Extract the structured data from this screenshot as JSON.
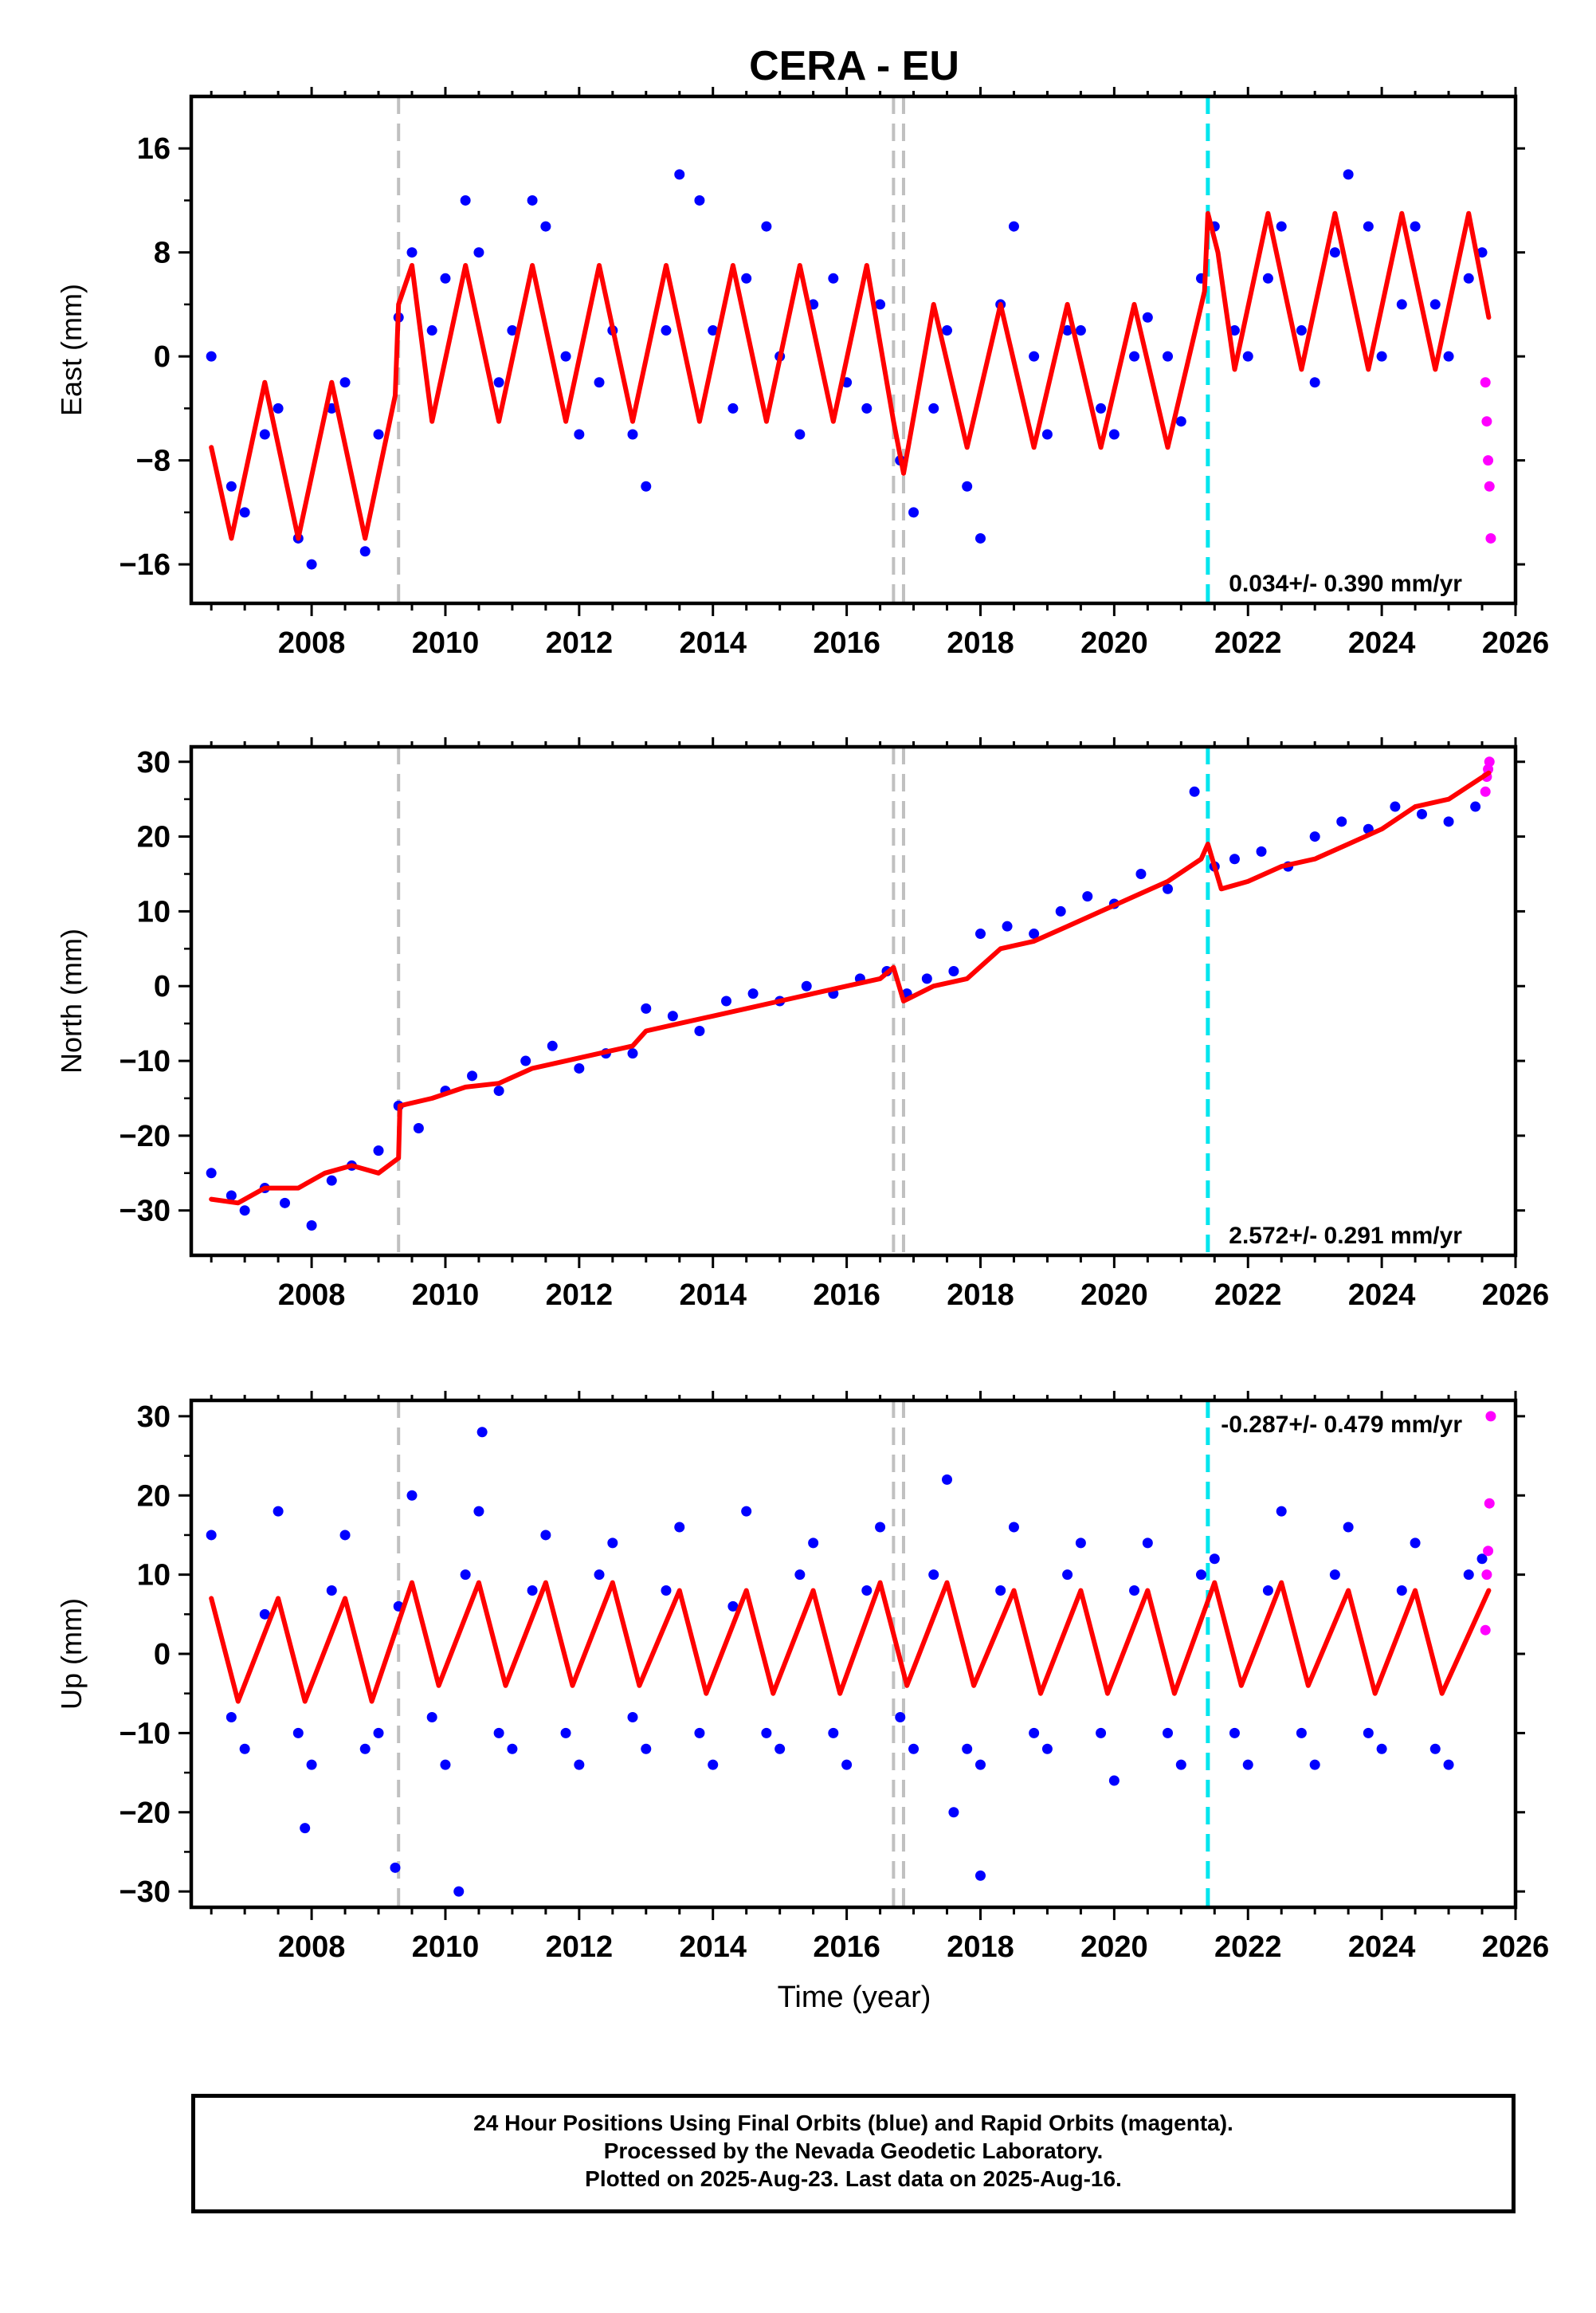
{
  "title": "CERA - EU",
  "x_axis_label": "Time (year)",
  "caption": [
    "24 Hour Positions Using Final Orbits (blue) and Rapid Orbits (magenta).",
    "Processed by the Nevada Geodetic Laboratory.",
    "Plotted on 2025-Aug-23. Last data on 2025-Aug-16."
  ],
  "colors": {
    "final_orbits": "#0000ff",
    "rapid_orbits": "#ff00ff",
    "model_fit": "#ff0000",
    "equipment_change": "#c0c0c0",
    "earthquake": "#00e5ee"
  },
  "chart_data": [
    {
      "type": "scatter",
      "ylabel": "East (mm)",
      "ylim": [
        -19,
        20
      ],
      "yticks": [
        16,
        8,
        0,
        -8,
        -16
      ],
      "xlim": [
        2006.2,
        2026
      ],
      "xticks": [
        2008,
        2010,
        2012,
        2014,
        2016,
        2018,
        2020,
        2022,
        2024,
        2026
      ],
      "rate_label": "0.034+/- 0.390 mm/yr",
      "rate_position": "bottom-right",
      "offset_lines": [
        2009.3,
        2016.7,
        2016.85
      ],
      "earthquake_lines": [
        2021.4
      ],
      "series": [
        {
          "name": "Final Orbits",
          "kind": "points",
          "color": "#0000ff",
          "x": [
            2006.5,
            2006.8,
            2007.0,
            2007.3,
            2007.5,
            2007.8,
            2008.0,
            2008.3,
            2008.5,
            2008.8,
            2009.0,
            2009.3,
            2009.5,
            2009.8,
            2010.0,
            2010.3,
            2010.5,
            2010.8,
            2011.0,
            2011.3,
            2011.5,
            2011.8,
            2012.0,
            2012.3,
            2012.5,
            2012.8,
            2013.0,
            2013.3,
            2013.5,
            2013.8,
            2014.0,
            2014.3,
            2014.5,
            2014.8,
            2015.0,
            2015.3,
            2015.5,
            2015.8,
            2016.0,
            2016.3,
            2016.5,
            2016.8,
            2017.0,
            2017.3,
            2017.5,
            2017.8,
            2018.0,
            2018.3,
            2018.5,
            2018.8,
            2019.0,
            2019.3,
            2019.5,
            2019.8,
            2020.0,
            2020.3,
            2020.5,
            2020.8,
            2021.0,
            2021.3,
            2021.5,
            2021.8,
            2022.0,
            2022.3,
            2022.5,
            2022.8,
            2023.0,
            2023.3,
            2023.5,
            2023.8,
            2024.0,
            2024.3,
            2024.5,
            2024.8,
            2025.0,
            2025.3,
            2025.5
          ],
          "y": [
            0,
            -10,
            -12,
            -6,
            -4,
            -14,
            -16,
            -4,
            -2,
            -15,
            -6,
            3,
            8,
            2,
            6,
            12,
            8,
            -2,
            2,
            12,
            10,
            0,
            -6,
            -2,
            2,
            -6,
            -10,
            2,
            14,
            12,
            2,
            -4,
            6,
            10,
            0,
            -6,
            4,
            6,
            -2,
            -4,
            4,
            -8,
            -12,
            -4,
            2,
            -10,
            -14,
            4,
            10,
            0,
            -6,
            2,
            2,
            -4,
            -6,
            0,
            3,
            0,
            -5,
            6,
            10,
            2,
            0,
            6,
            10,
            2,
            -2,
            8,
            14,
            10,
            0,
            4,
            10,
            4,
            0,
            6,
            8
          ]
        },
        {
          "name": "Rapid Orbits",
          "kind": "points",
          "color": "#ff00ff",
          "x": [
            2025.55,
            2025.57,
            2025.59,
            2025.61,
            2025.63
          ],
          "y": [
            -2,
            -5,
            -8,
            -10,
            -14
          ]
        },
        {
          "name": "Model",
          "kind": "line",
          "color": "#ff0000",
          "x": [
            2006.5,
            2006.8,
            2007.3,
            2007.8,
            2008.3,
            2008.8,
            2009.25,
            2009.3,
            2009.5,
            2009.8,
            2010.3,
            2010.8,
            2011.3,
            2011.8,
            2012.3,
            2012.8,
            2013.3,
            2013.8,
            2014.3,
            2014.8,
            2015.3,
            2015.8,
            2016.3,
            2016.7,
            2016.85,
            2017.3,
            2017.8,
            2018.3,
            2018.8,
            2019.3,
            2019.8,
            2020.3,
            2020.8,
            2021.35,
            2021.4,
            2021.55,
            2021.8,
            2022.3,
            2022.8,
            2023.3,
            2023.8,
            2024.3,
            2024.8,
            2025.3,
            2025.6
          ],
          "y": [
            -7,
            -14,
            -2,
            -14,
            -2,
            -14,
            -3,
            4,
            7,
            -5,
            7,
            -5,
            7,
            -5,
            7,
            -5,
            7,
            -5,
            7,
            -5,
            7,
            -5,
            7,
            -5,
            -9,
            4,
            -7,
            4,
            -7,
            4,
            -7,
            4,
            -7,
            5,
            11,
            8,
            -1,
            11,
            -1,
            11,
            -1,
            11,
            -1,
            11,
            3
          ]
        }
      ]
    },
    {
      "type": "scatter",
      "ylabel": "North (mm)",
      "ylim": [
        -36,
        32
      ],
      "yticks": [
        30,
        20,
        10,
        0,
        -10,
        -20,
        -30
      ],
      "xlim": [
        2006.2,
        2026
      ],
      "xticks": [
        2008,
        2010,
        2012,
        2014,
        2016,
        2018,
        2020,
        2022,
        2024,
        2026
      ],
      "rate_label": "2.572+/- 0.291 mm/yr",
      "rate_position": "bottom-right",
      "offset_lines": [
        2009.3,
        2016.7,
        2016.85
      ],
      "earthquake_lines": [
        2021.4
      ],
      "series": [
        {
          "name": "Final Orbits",
          "kind": "points",
          "color": "#0000ff",
          "x": [
            2006.5,
            2006.8,
            2007.0,
            2007.3,
            2007.6,
            2008.0,
            2008.3,
            2008.6,
            2009.0,
            2009.3,
            2009.6,
            2010.0,
            2010.4,
            2010.8,
            2011.2,
            2011.6,
            2012.0,
            2012.4,
            2012.8,
            2013.0,
            2013.4,
            2013.8,
            2014.2,
            2014.6,
            2015.0,
            2015.4,
            2015.8,
            2016.2,
            2016.6,
            2016.9,
            2017.2,
            2017.6,
            2018.0,
            2018.4,
            2018.8,
            2019.2,
            2019.6,
            2020.0,
            2020.4,
            2020.8,
            2021.2,
            2021.5,
            2021.8,
            2022.2,
            2022.6,
            2023.0,
            2023.4,
            2023.8,
            2024.2,
            2024.6,
            2025.0,
            2025.4
          ],
          "y": [
            -25,
            -28,
            -30,
            -27,
            -29,
            -32,
            -26,
            -24,
            -22,
            -16,
            -19,
            -14,
            -12,
            -14,
            -10,
            -8,
            -11,
            -9,
            -9,
            -3,
            -4,
            -6,
            -2,
            -1,
            -2,
            0,
            -1,
            1,
            2,
            -1,
            1,
            2,
            7,
            8,
            7,
            10,
            12,
            11,
            15,
            13,
            26,
            16,
            17,
            18,
            16,
            20,
            22,
            21,
            24,
            23,
            22,
            24
          ]
        },
        {
          "name": "Rapid Orbits",
          "kind": "points",
          "color": "#ff00ff",
          "x": [
            2025.55,
            2025.57,
            2025.59,
            2025.61
          ],
          "y": [
            26,
            28,
            29,
            30
          ]
        },
        {
          "name": "Model",
          "kind": "line",
          "color": "#ff0000",
          "x": [
            2006.5,
            2006.9,
            2007.3,
            2007.8,
            2008.2,
            2008.6,
            2009.0,
            2009.3,
            2009.32,
            2009.8,
            2010.3,
            2010.8,
            2011.3,
            2011.8,
            2012.3,
            2012.8,
            2013.0,
            2013.5,
            2014.0,
            2014.5,
            2015.0,
            2015.5,
            2016.0,
            2016.5,
            2016.7,
            2016.85,
            2017.3,
            2017.8,
            2018.3,
            2018.8,
            2019.3,
            2019.8,
            2020.3,
            2020.8,
            2021.3,
            2021.4,
            2021.6,
            2022.0,
            2022.5,
            2023.0,
            2023.5,
            2024.0,
            2024.5,
            2025.0,
            2025.6
          ],
          "y": [
            -28.5,
            -29,
            -27,
            -27,
            -25,
            -24,
            -25,
            -23,
            -16,
            -15,
            -13.5,
            -13,
            -11,
            -10,
            -9,
            -8,
            -6,
            -5,
            -4,
            -3,
            -2,
            -1,
            0,
            1,
            2.5,
            -2,
            0,
            1,
            5,
            6,
            8,
            10,
            12,
            14,
            17,
            19,
            13,
            14,
            16,
            17,
            19,
            21,
            24,
            25,
            28.5
          ]
        }
      ]
    },
    {
      "type": "scatter",
      "ylabel": "Up (mm)",
      "ylim": [
        -32,
        32
      ],
      "yticks": [
        30,
        20,
        10,
        0,
        -10,
        -20,
        -30
      ],
      "xlim": [
        2006.2,
        2026
      ],
      "xticks": [
        2008,
        2010,
        2012,
        2014,
        2016,
        2018,
        2020,
        2022,
        2024,
        2026
      ],
      "xlabel": "Time (year)",
      "rate_label": "-0.287+/- 0.479 mm/yr",
      "rate_position": "top-right",
      "offset_lines": [
        2009.3,
        2016.7,
        2016.85
      ],
      "earthquake_lines": [
        2021.4
      ],
      "series": [
        {
          "name": "Final Orbits",
          "kind": "points",
          "color": "#0000ff",
          "x": [
            2006.5,
            2006.8,
            2007.0,
            2007.3,
            2007.5,
            2007.8,
            2008.0,
            2008.3,
            2008.5,
            2008.8,
            2009.0,
            2009.3,
            2009.5,
            2009.8,
            2010.0,
            2010.3,
            2010.5,
            2010.8,
            2011.0,
            2011.3,
            2011.5,
            2011.8,
            2012.0,
            2012.3,
            2012.5,
            2012.8,
            2013.0,
            2013.3,
            2013.5,
            2013.8,
            2014.0,
            2014.3,
            2014.5,
            2014.8,
            2015.0,
            2015.3,
            2015.5,
            2015.8,
            2016.0,
            2016.3,
            2016.5,
            2016.8,
            2017.0,
            2017.3,
            2017.5,
            2017.8,
            2018.0,
            2018.3,
            2018.5,
            2018.8,
            2019.0,
            2019.3,
            2019.5,
            2019.8,
            2020.0,
            2020.3,
            2020.5,
            2020.8,
            2021.0,
            2021.3,
            2021.5,
            2021.8,
            2022.0,
            2022.3,
            2022.5,
            2022.8,
            2023.0,
            2023.3,
            2023.5,
            2023.8,
            2024.0,
            2024.3,
            2024.5,
            2024.8,
            2025.0,
            2025.3,
            2025.5,
            2007.9,
            2009.25,
            2010.2,
            2010.55,
            2017.6,
            2018.0
          ],
          "y": [
            15,
            -8,
            -12,
            5,
            18,
            -10,
            -14,
            8,
            15,
            -12,
            -10,
            6,
            20,
            -8,
            -14,
            10,
            18,
            -10,
            -12,
            8,
            15,
            -10,
            -14,
            10,
            14,
            -8,
            -12,
            8,
            16,
            -10,
            -14,
            6,
            18,
            -10,
            -12,
            10,
            14,
            -10,
            -14,
            8,
            16,
            -8,
            -12,
            10,
            22,
            -12,
            -14,
            8,
            16,
            -10,
            -12,
            10,
            14,
            -10,
            -16,
            8,
            14,
            -10,
            -14,
            10,
            12,
            -10,
            -14,
            8,
            18,
            -10,
            -14,
            10,
            16,
            -10,
            -12,
            8,
            14,
            -12,
            -14,
            10,
            12,
            -22,
            -27,
            -30,
            28,
            -20,
            -28
          ]
        },
        {
          "name": "Rapid Orbits",
          "kind": "points",
          "color": "#ff00ff",
          "x": [
            2025.55,
            2025.57,
            2025.59,
            2025.61,
            2025.63
          ],
          "y": [
            3,
            10,
            13,
            19,
            30
          ]
        },
        {
          "name": "Model",
          "kind": "line",
          "color": "#ff0000",
          "x": [
            2006.5,
            2006.9,
            2007.5,
            2007.9,
            2008.5,
            2008.9,
            2009.5,
            2009.9,
            2010.5,
            2010.9,
            2011.5,
            2011.9,
            2012.5,
            2012.9,
            2013.5,
            2013.9,
            2014.5,
            2014.9,
            2015.5,
            2015.9,
            2016.5,
            2016.9,
            2017.5,
            2017.9,
            2018.5,
            2018.9,
            2019.5,
            2019.9,
            2020.5,
            2020.9,
            2021.5,
            2021.9,
            2022.5,
            2022.9,
            2023.5,
            2023.9,
            2024.5,
            2024.9,
            2025.6
          ],
          "y": [
            7,
            -6,
            7,
            -6,
            7,
            -6,
            9,
            -4,
            9,
            -4,
            9,
            -4,
            9,
            -4,
            8,
            -5,
            8,
            -5,
            8,
            -5,
            9,
            -4,
            9,
            -4,
            8,
            -5,
            8,
            -5,
            8,
            -5,
            9,
            -4,
            9,
            -4,
            8,
            -5,
            8,
            -5,
            8
          ]
        }
      ]
    }
  ]
}
